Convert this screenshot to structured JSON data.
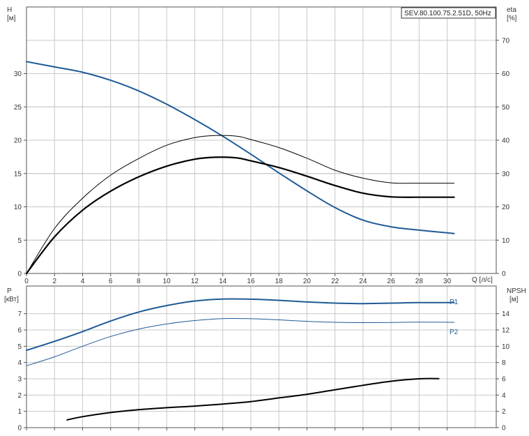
{
  "legend_box": "SEV.80.100.75.2.51D, 50Hz",
  "colors": {
    "blue": "#1f5a96",
    "black": "#000000",
    "grid": "#c8c8c8",
    "frame": "#555555"
  },
  "chart_data": [
    {
      "type": "line",
      "axes": {
        "x": {
          "label": "Q [л/с]",
          "range": [
            0,
            33.5
          ],
          "ticks": [
            0,
            2,
            4,
            6,
            8,
            10,
            12,
            14,
            16,
            18,
            20,
            22,
            24,
            26,
            28,
            30
          ]
        },
        "y_left": {
          "label_line1": "H",
          "label_line2": "[м]",
          "range": [
            0,
            40
          ],
          "ticks": [
            0,
            5,
            10,
            15,
            20,
            25,
            30
          ]
        },
        "y_right": {
          "label_line1": "eta",
          "label_line2": "[%]",
          "range": [
            0,
            80
          ],
          "ticks": [
            0,
            10,
            20,
            30,
            40,
            50,
            60,
            70
          ]
        }
      },
      "grid": true,
      "series": [
        {
          "axis": "left",
          "color": "#1f5a96",
          "x": [
            0,
            2,
            4,
            6,
            8,
            10,
            12,
            14,
            16,
            18,
            20,
            22,
            24,
            26,
            28,
            30.5
          ],
          "y": [
            31.8,
            31.0,
            30.2,
            29.0,
            27.4,
            25.4,
            23.1,
            20.6,
            17.9,
            15.1,
            12.4,
            9.9,
            8.0,
            7.0,
            6.5,
            6.0
          ]
        },
        {
          "axis": "right",
          "color": "#000000",
          "x": [
            0,
            2,
            4,
            6,
            8,
            10,
            12,
            13.5,
            15,
            16,
            18,
            20,
            22,
            24,
            26,
            28,
            30.5
          ],
          "y": [
            0,
            11.0,
            19.0,
            24.7,
            29.0,
            32.2,
            34.3,
            34.9,
            34.7,
            33.8,
            31.8,
            29.2,
            26.4,
            24.1,
            23.0,
            22.9,
            22.9
          ]
        },
        {
          "axis": "right",
          "color": "#000000",
          "x": [
            0,
            2,
            4,
            6,
            8,
            10,
            12,
            13.5,
            15,
            16,
            18,
            20,
            22,
            24,
            26,
            28,
            30.5
          ],
          "y": [
            0,
            13.5,
            22.6,
            29.5,
            34.5,
            38.5,
            40.8,
            41.4,
            41.2,
            40.2,
            37.8,
            34.6,
            31.0,
            28.6,
            27.2,
            27.1,
            27.1
          ]
        }
      ]
    },
    {
      "type": "line",
      "axes": {
        "x": {
          "range": [
            0,
            33.5
          ]
        },
        "y_left": {
          "label_line1": "P",
          "label_line2": "[кВт]",
          "range": [
            0,
            8.7
          ],
          "ticks": [
            0,
            1,
            2,
            3,
            4,
            5,
            6,
            7
          ]
        },
        "y_right": {
          "label_line1": "NPSH",
          "label_line2": "[м]",
          "range": [
            0,
            17.4
          ],
          "ticks": [
            0,
            2,
            4,
            6,
            8,
            10,
            12,
            14
          ]
        }
      },
      "grid": true,
      "series": [
        {
          "name": "P1",
          "axis": "left",
          "color": "#1f5a96",
          "x": [
            0,
            2,
            4,
            6,
            8,
            10,
            12,
            14,
            16,
            18,
            20,
            22,
            24,
            26,
            28,
            30.5
          ],
          "y": [
            4.75,
            5.3,
            5.9,
            6.55,
            7.1,
            7.5,
            7.78,
            7.9,
            7.89,
            7.82,
            7.72,
            7.65,
            7.62,
            7.65,
            7.68,
            7.68
          ]
        },
        {
          "name": "P2",
          "axis": "left",
          "color": "#1f5a96",
          "x": [
            0,
            2,
            4,
            6,
            8,
            10,
            12,
            14,
            16,
            18,
            20,
            22,
            24,
            26,
            28,
            30.5
          ],
          "y": [
            3.8,
            4.35,
            5.0,
            5.6,
            6.05,
            6.37,
            6.58,
            6.7,
            6.69,
            6.62,
            6.53,
            6.47,
            6.45,
            6.46,
            6.48,
            6.47
          ]
        },
        {
          "axis": "right",
          "color": "#000000",
          "x": [
            2.9,
            4,
            6,
            8,
            10,
            12,
            14,
            16,
            18,
            20,
            22,
            24,
            26,
            28,
            29.4
          ],
          "y": [
            0.95,
            1.35,
            1.85,
            2.2,
            2.45,
            2.65,
            2.9,
            3.2,
            3.65,
            4.1,
            4.65,
            5.2,
            5.7,
            6.0,
            6.02
          ]
        }
      ]
    }
  ]
}
